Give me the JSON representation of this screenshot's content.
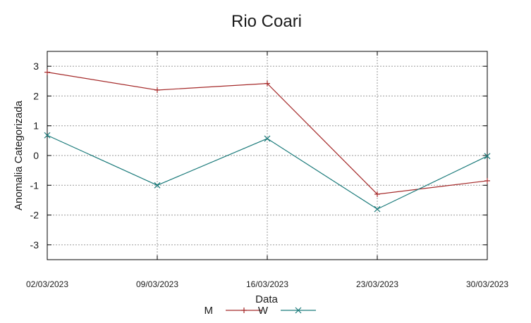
{
  "chart_data": {
    "type": "line",
    "title": "Rio Coari",
    "xlabel": "Data",
    "ylabel": "Anomalia Categorizada",
    "categories": [
      "02/03/2023",
      "09/03/2023",
      "16/03/2023",
      "23/03/2023",
      "30/03/2023"
    ],
    "ylim": [
      -3.5,
      3.5
    ],
    "yticks": [
      "3",
      "2",
      "1",
      "0",
      "-1",
      "-2",
      "-3"
    ],
    "ytick_values": [
      3,
      2,
      1,
      0,
      -1,
      -2,
      -3
    ],
    "grid": true,
    "legend_position": "bottom",
    "series": [
      {
        "name": "M",
        "color": "#a52a2a",
        "marker": "plus",
        "values": [
          2.8,
          2.2,
          2.42,
          -1.3,
          -0.85
        ]
      },
      {
        "name": "W",
        "color": "#1a7a7a",
        "marker": "cross",
        "values": [
          0.68,
          -1.0,
          0.57,
          -1.8,
          -0.02
        ]
      }
    ]
  }
}
